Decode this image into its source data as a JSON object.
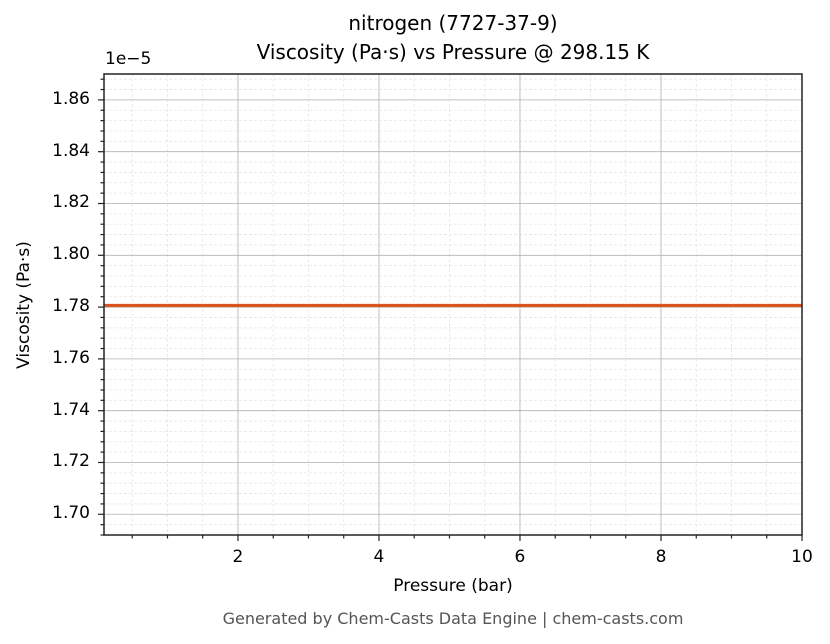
{
  "chart_data": {
    "type": "line",
    "title": "nitrogen (7727-37-9)",
    "subtitle": "Viscosity (Pa·s) vs Pressure @ 298.15 K",
    "xlabel": "Pressure (bar)",
    "ylabel": "Viscosity (Pa·s)",
    "y_offset_label": "1e−5",
    "xlim": [
      0.1,
      10
    ],
    "ylim": [
      1.692e-05,
      1.87e-05
    ],
    "x_ticks": [
      "2",
      "4",
      "6",
      "8",
      "10"
    ],
    "y_ticks": [
      "1.70",
      "1.72",
      "1.74",
      "1.76",
      "1.78",
      "1.80",
      "1.82",
      "1.84",
      "1.86"
    ],
    "grid": true,
    "legend": null,
    "series": [
      {
        "name": "Viscosity",
        "color": "#D9541E",
        "x": [
          0.1,
          1,
          2,
          3,
          4,
          5,
          6,
          7,
          8,
          9,
          10
        ],
        "values": [
          1.7806e-05,
          1.7806e-05,
          1.7806e-05,
          1.7806e-05,
          1.7806e-05,
          1.7806e-05,
          1.7806e-05,
          1.7806e-05,
          1.7806e-05,
          1.7806e-05,
          1.7806e-05
        ]
      }
    ]
  },
  "footer": "Generated by Chem-Casts Data Engine | chem-casts.com"
}
